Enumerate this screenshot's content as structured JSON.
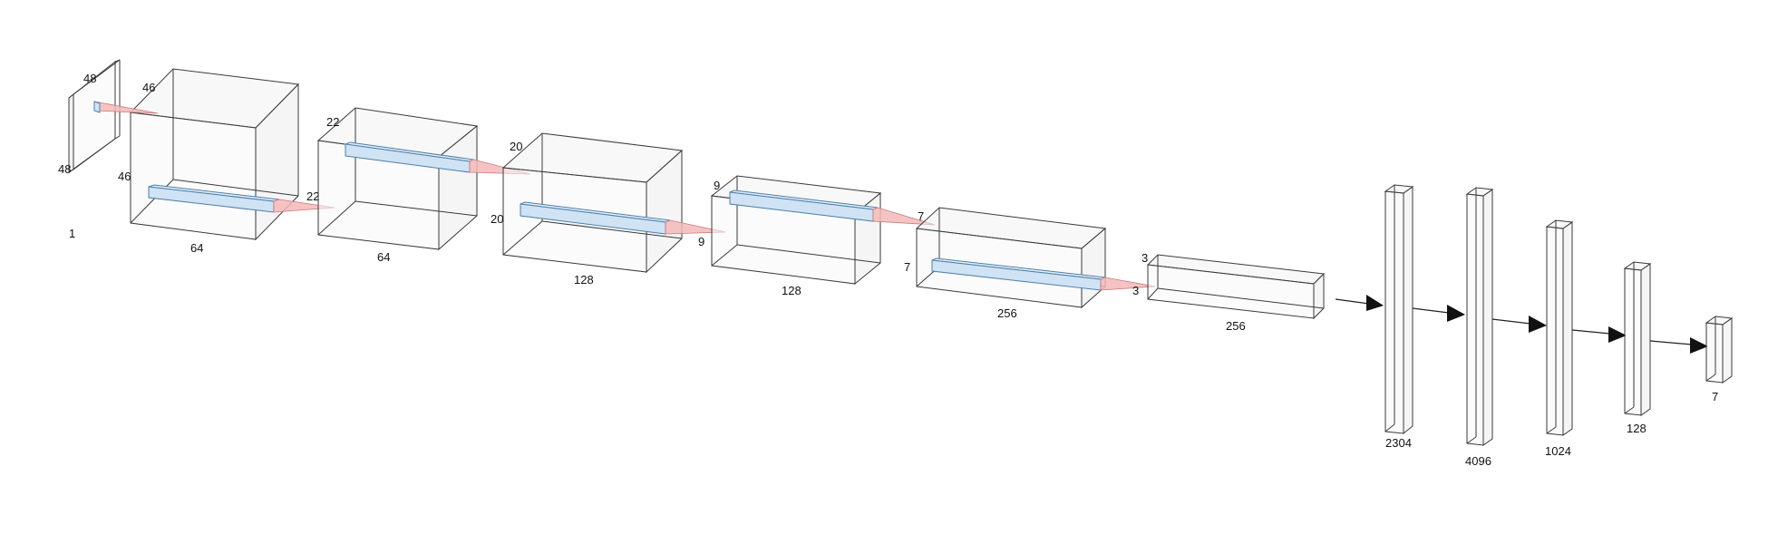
{
  "diagram": {
    "input": {
      "height_label": "48",
      "width_label": "48",
      "channels_label": "1"
    },
    "conv1": {
      "height_label": "46",
      "width_label": "46",
      "channels_label": "64",
      "out_label": "22"
    },
    "conv2": {
      "height_label": "22",
      "channels_label": "64"
    },
    "conv3": {
      "height_label": "20",
      "width_label": "20",
      "channels_label": "128",
      "out_label": "9"
    },
    "conv4": {
      "height_label": "9",
      "channels_label": "128",
      "out_label": "7"
    },
    "conv5": {
      "width_label": "7",
      "channels_label": "256",
      "out_label": "3"
    },
    "conv6": {
      "height_label": "3",
      "channels_label": "256"
    },
    "dense": [
      "2304",
      "4096",
      "1024",
      "128",
      "7"
    ]
  }
}
